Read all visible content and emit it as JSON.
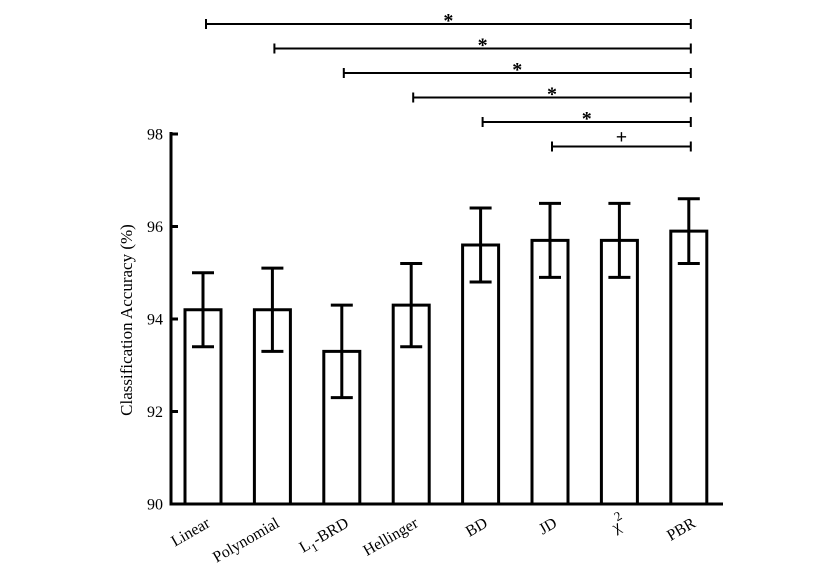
{
  "chart_data": {
    "type": "bar",
    "title": "",
    "xlabel": "",
    "ylabel": "Classification Accuracy (%)",
    "ylim": [
      90,
      98
    ],
    "yticks": [
      90,
      92,
      94,
      96,
      98
    ],
    "yticklabels": [
      "90",
      "92",
      "94",
      "96",
      "98"
    ],
    "grid": false,
    "legend": "none",
    "categories": [
      "Linear",
      "Polynomial",
      "L1-BRD",
      "Hellinger",
      "BD",
      "JD",
      "χ2",
      "PBR"
    ],
    "category_labels": [
      {
        "main": "Linear",
        "sub": "",
        "rest": "",
        "sup": ""
      },
      {
        "main": "Polynomial",
        "sub": "",
        "rest": "",
        "sup": ""
      },
      {
        "main": "L",
        "sub": "1",
        "rest": "-BRD",
        "sup": ""
      },
      {
        "main": "Hellinger",
        "sub": "",
        "rest": "",
        "sup": ""
      },
      {
        "main": "BD",
        "sub": "",
        "rest": "",
        "sup": ""
      },
      {
        "main": "JD",
        "sub": "",
        "rest": "",
        "sup": ""
      },
      {
        "main": "χ",
        "sub": "",
        "rest": "",
        "sup": "2"
      },
      {
        "main": "PBR",
        "sub": "",
        "rest": "",
        "sup": ""
      }
    ],
    "values": [
      94.2,
      94.2,
      93.3,
      94.3,
      95.6,
      95.7,
      95.7,
      95.9
    ],
    "error_low": [
      93.4,
      93.3,
      92.3,
      93.4,
      94.8,
      94.9,
      94.9,
      95.2
    ],
    "error_high": [
      95.0,
      95.1,
      94.3,
      95.2,
      96.4,
      96.5,
      96.5,
      96.6
    ],
    "significance": [
      {
        "from": "Linear",
        "to": "PBR",
        "mark": "*"
      },
      {
        "from": "Polynomial",
        "to": "PBR",
        "mark": "*"
      },
      {
        "from": "L1-BRD",
        "to": "PBR",
        "mark": "*"
      },
      {
        "from": "Hellinger",
        "to": "PBR",
        "mark": "*"
      },
      {
        "from": "BD",
        "to": "PBR",
        "mark": "*"
      },
      {
        "from": "JD",
        "to": "PBR",
        "mark": "+"
      }
    ],
    "colors": {
      "bar_fill": "#ffffff",
      "stroke": "#000000"
    }
  }
}
